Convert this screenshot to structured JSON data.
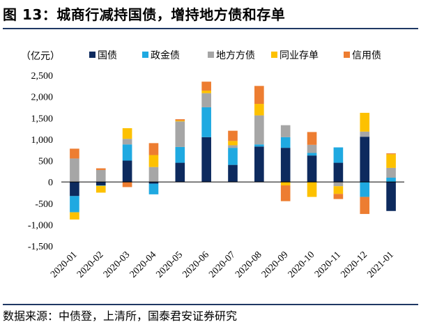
{
  "title": "图 13：城商行减持国债，增持地方债和存单",
  "source": "数据来源：中债登，上清所，国泰君安证券研究",
  "chart_data": {
    "type": "bar",
    "stacked": true,
    "unit": "（亿元）",
    "ylim": [
      -1500,
      2500
    ],
    "yticks": [
      2500,
      2000,
      1500,
      1000,
      500,
      0,
      -500,
      -1000,
      -1500
    ],
    "ytick_labels": [
      "2,500",
      "2,000",
      "1,500",
      "1,000",
      "500",
      "0",
      "-500",
      "-1,000",
      "-1,500"
    ],
    "categories": [
      "2020-01",
      "2020-02",
      "2020-03",
      "2020-04",
      "2020-05",
      "2020-06",
      "2020-07",
      "2020-08",
      "2020-09",
      "2020-10",
      "2020-11",
      "2020-12",
      "2021-01"
    ],
    "legend_position": "top",
    "series": [
      {
        "name": "国债",
        "color": "#0d2a5e",
        "values": [
          -330,
          -80,
          500,
          -40,
          450,
          1050,
          400,
          830,
          800,
          620,
          450,
          1060,
          -680
        ]
      },
      {
        "name": "政金债",
        "color": "#1fa9e1",
        "values": [
          -380,
          -10,
          380,
          -250,
          370,
          700,
          400,
          50,
          250,
          60,
          360,
          -350,
          100
        ]
      },
      {
        "name": "地方方债",
        "color": "#a6a6a6",
        "values": [
          550,
          280,
          130,
          350,
          600,
          330,
          60,
          680,
          280,
          190,
          -100,
          120,
          230
        ]
      },
      {
        "name": "同业存单",
        "color": "#fdc100",
        "values": [
          -170,
          -160,
          250,
          280,
          20,
          60,
          100,
          270,
          -80,
          -350,
          -180,
          440,
          320
        ]
      },
      {
        "name": "信用债",
        "color": "#ed7d31",
        "values": [
          230,
          40,
          -120,
          280,
          30,
          210,
          240,
          420,
          -370,
          300,
          -120,
          -400,
          20
        ]
      }
    ]
  }
}
